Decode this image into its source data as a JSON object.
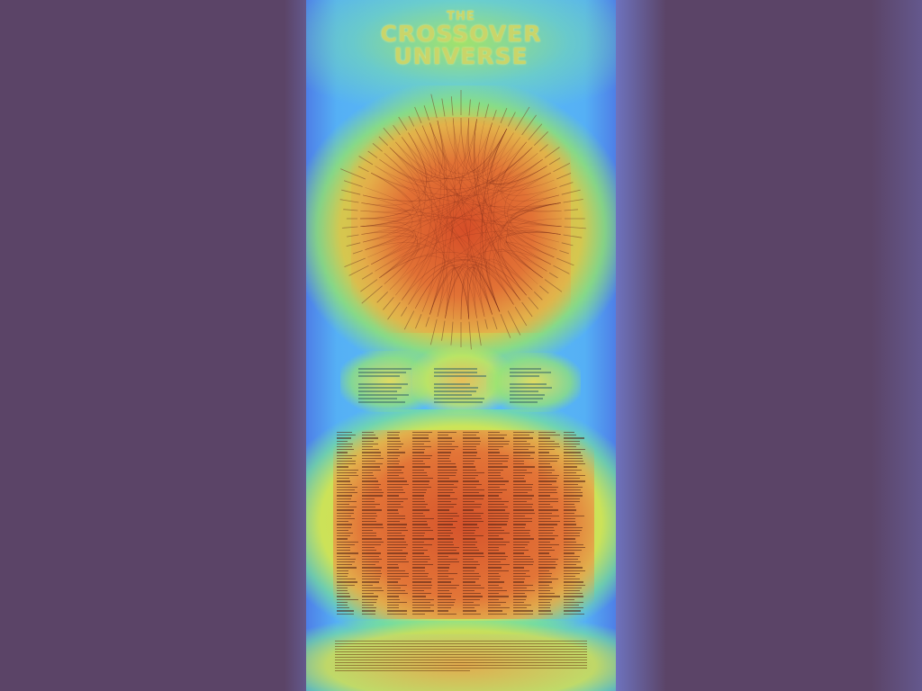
{
  "poster": {
    "masthead_left": "",
    "masthead_right": "",
    "title_lines": [
      "THE",
      "CROSSOVER",
      "UNIVERSE"
    ],
    "subtitle": ""
  },
  "sections": {
    "notes": [
      "",
      "",
      ""
    ],
    "table_title": "",
    "footer_title": ""
  }
}
